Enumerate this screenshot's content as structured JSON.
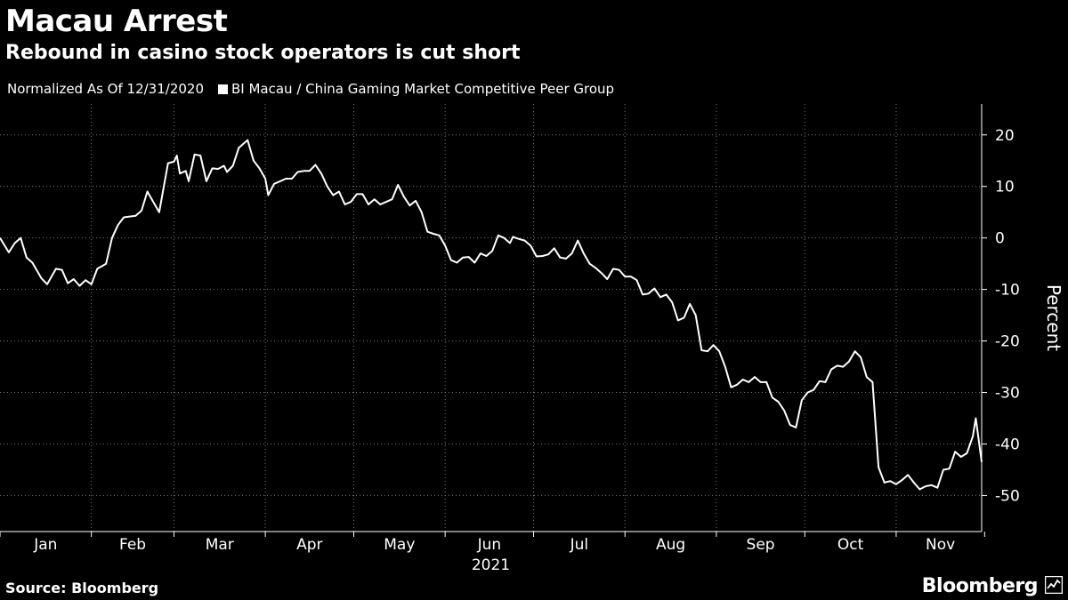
{
  "header": {
    "title": "Macau Arrest",
    "subtitle": "Rebound in casino stock operators is cut short",
    "note": "Normalized As Of 12/31/2020",
    "legend_label": "BI Macau / China Gaming Market Competitive Peer Group"
  },
  "footer": {
    "source": "Source: Bloomberg",
    "brand": "Bloomberg"
  },
  "colors": {
    "background": "#000000",
    "line": "#ffffff",
    "grid": "#777777"
  },
  "chart_data": {
    "type": "line",
    "ylabel": "Percent",
    "year_label": "2021",
    "ylim": [
      -57,
      26
    ],
    "yticks": [
      20,
      10,
      0,
      -10,
      -20,
      -30,
      -40,
      -50
    ],
    "x_start": "2021-01-01",
    "x_end": "2021-11-30",
    "grid": true,
    "months": [
      {
        "label": "Jan",
        "date": "2021-01-01"
      },
      {
        "label": "Feb",
        "date": "2021-02-01"
      },
      {
        "label": "Mar",
        "date": "2021-03-01"
      },
      {
        "label": "Apr",
        "date": "2021-04-01"
      },
      {
        "label": "May",
        "date": "2021-05-01"
      },
      {
        "label": "Jun",
        "date": "2021-06-01"
      },
      {
        "label": "Jul",
        "date": "2021-07-01"
      },
      {
        "label": "Aug",
        "date": "2021-08-01"
      },
      {
        "label": "Sep",
        "date": "2021-09-01"
      },
      {
        "label": "Oct",
        "date": "2021-10-01"
      },
      {
        "label": "Nov",
        "date": "2021-11-01"
      }
    ],
    "month_ends": [
      "2021-12-01"
    ],
    "series": [
      {
        "name": "BI Macau / China Gaming Market Competitive Peer Group",
        "points": [
          [
            "2021-01-01",
            0.0
          ],
          [
            "2021-01-04",
            -2.8
          ],
          [
            "2021-01-06",
            -1.0
          ],
          [
            "2021-01-08",
            0.0
          ],
          [
            "2021-01-10",
            -3.8
          ],
          [
            "2021-01-12",
            -4.8
          ],
          [
            "2021-01-15",
            -7.8
          ],
          [
            "2021-01-17",
            -9.0
          ],
          [
            "2021-01-20",
            -6.0
          ],
          [
            "2021-01-22",
            -6.2
          ],
          [
            "2021-01-24",
            -8.8
          ],
          [
            "2021-01-26",
            -8.0
          ],
          [
            "2021-01-28",
            -9.3
          ],
          [
            "2021-01-30",
            -8.2
          ],
          [
            "2021-02-01",
            -9.0
          ],
          [
            "2021-02-03",
            -6.0
          ],
          [
            "2021-02-06",
            -5.0
          ],
          [
            "2021-02-08",
            0.0
          ],
          [
            "2021-02-10",
            2.5
          ],
          [
            "2021-02-12",
            4.0
          ],
          [
            "2021-02-16",
            4.3
          ],
          [
            "2021-02-18",
            5.3
          ],
          [
            "2021-02-20",
            9.0
          ],
          [
            "2021-02-22",
            7.0
          ],
          [
            "2021-02-24",
            5.0
          ],
          [
            "2021-02-27",
            14.5
          ],
          [
            "2021-03-01",
            14.8
          ],
          [
            "2021-03-02",
            16.0
          ],
          [
            "2021-03-03",
            12.5
          ],
          [
            "2021-03-05",
            13.0
          ],
          [
            "2021-03-06",
            11.0
          ],
          [
            "2021-03-08",
            16.2
          ],
          [
            "2021-03-10",
            16.0
          ],
          [
            "2021-03-12",
            11.0
          ],
          [
            "2021-03-14",
            13.5
          ],
          [
            "2021-03-16",
            13.4
          ],
          [
            "2021-03-18",
            14.0
          ],
          [
            "2021-03-19",
            12.8
          ],
          [
            "2021-03-21",
            14.0
          ],
          [
            "2021-03-23",
            17.5
          ],
          [
            "2021-03-25",
            18.5
          ],
          [
            "2021-03-26",
            19.0
          ],
          [
            "2021-03-28",
            15.0
          ],
          [
            "2021-03-30",
            13.5
          ],
          [
            "2021-04-01",
            11.5
          ],
          [
            "2021-04-02",
            8.3
          ],
          [
            "2021-04-04",
            10.5
          ],
          [
            "2021-04-06",
            11.0
          ],
          [
            "2021-04-08",
            11.5
          ],
          [
            "2021-04-10",
            11.5
          ],
          [
            "2021-04-12",
            12.8
          ],
          [
            "2021-04-14",
            13.0
          ],
          [
            "2021-04-16",
            13.0
          ],
          [
            "2021-04-18",
            14.2
          ],
          [
            "2021-04-20",
            12.5
          ],
          [
            "2021-04-22",
            10.0
          ],
          [
            "2021-04-24",
            8.3
          ],
          [
            "2021-04-26",
            9.0
          ],
          [
            "2021-04-28",
            6.5
          ],
          [
            "2021-04-30",
            7.0
          ],
          [
            "2021-05-02",
            8.5
          ],
          [
            "2021-05-04",
            8.5
          ],
          [
            "2021-05-06",
            6.5
          ],
          [
            "2021-05-08",
            7.5
          ],
          [
            "2021-05-10",
            6.5
          ],
          [
            "2021-05-12",
            7.0
          ],
          [
            "2021-05-14",
            7.5
          ],
          [
            "2021-05-16",
            10.3
          ],
          [
            "2021-05-18",
            8.0
          ],
          [
            "2021-05-20",
            6.3
          ],
          [
            "2021-05-22",
            7.2
          ],
          [
            "2021-05-24",
            5.0
          ],
          [
            "2021-05-26",
            1.2
          ],
          [
            "2021-05-28",
            0.8
          ],
          [
            "2021-05-30",
            0.5
          ],
          [
            "2021-06-01",
            -1.5
          ],
          [
            "2021-06-03",
            -4.3
          ],
          [
            "2021-06-05",
            -4.8
          ],
          [
            "2021-06-07",
            -3.8
          ],
          [
            "2021-06-09",
            -3.7
          ],
          [
            "2021-06-11",
            -4.8
          ],
          [
            "2021-06-13",
            -3.0
          ],
          [
            "2021-06-15",
            -3.5
          ],
          [
            "2021-06-17",
            -2.5
          ],
          [
            "2021-06-19",
            0.5
          ],
          [
            "2021-06-21",
            0.0
          ],
          [
            "2021-06-23",
            -1.0
          ],
          [
            "2021-06-24",
            0.2
          ],
          [
            "2021-06-26",
            -0.2
          ],
          [
            "2021-06-28",
            -0.5
          ],
          [
            "2021-06-30",
            -1.5
          ],
          [
            "2021-07-02",
            -3.6
          ],
          [
            "2021-07-04",
            -3.5
          ],
          [
            "2021-07-06",
            -3.2
          ],
          [
            "2021-07-08",
            -2.0
          ],
          [
            "2021-07-10",
            -3.8
          ],
          [
            "2021-07-12",
            -4.0
          ],
          [
            "2021-07-14",
            -3.0
          ],
          [
            "2021-07-16",
            -0.5
          ],
          [
            "2021-07-18",
            -3.0
          ],
          [
            "2021-07-20",
            -5.0
          ],
          [
            "2021-07-22",
            -5.8
          ],
          [
            "2021-07-24",
            -6.8
          ],
          [
            "2021-07-26",
            -8.0
          ],
          [
            "2021-07-28",
            -6.0
          ],
          [
            "2021-07-30",
            -6.2
          ],
          [
            "2021-08-01",
            -7.5
          ],
          [
            "2021-08-03",
            -7.5
          ],
          [
            "2021-08-05",
            -8.2
          ],
          [
            "2021-08-07",
            -11.0
          ],
          [
            "2021-08-09",
            -10.8
          ],
          [
            "2021-08-11",
            -9.8
          ],
          [
            "2021-08-13",
            -11.5
          ],
          [
            "2021-08-15",
            -11.0
          ],
          [
            "2021-08-17",
            -12.5
          ],
          [
            "2021-08-19",
            -16.0
          ],
          [
            "2021-08-21",
            -15.5
          ],
          [
            "2021-08-23",
            -12.8
          ],
          [
            "2021-08-25",
            -15.0
          ],
          [
            "2021-08-27",
            -21.8
          ],
          [
            "2021-08-29",
            -22.0
          ],
          [
            "2021-08-31",
            -20.8
          ],
          [
            "2021-09-02",
            -22.0
          ],
          [
            "2021-09-04",
            -25.0
          ],
          [
            "2021-09-06",
            -29.0
          ],
          [
            "2021-09-08",
            -28.5
          ],
          [
            "2021-09-10",
            -27.5
          ],
          [
            "2021-09-12",
            -28.0
          ],
          [
            "2021-09-14",
            -27.0
          ],
          [
            "2021-09-16",
            -28.0
          ],
          [
            "2021-09-18",
            -28.0
          ],
          [
            "2021-09-20",
            -31.0
          ],
          [
            "2021-09-22",
            -31.8
          ],
          [
            "2021-09-24",
            -33.5
          ],
          [
            "2021-09-26",
            -36.3
          ],
          [
            "2021-09-28",
            -36.8
          ],
          [
            "2021-09-30",
            -31.5
          ],
          [
            "2021-10-02",
            -30.0
          ],
          [
            "2021-10-04",
            -29.5
          ],
          [
            "2021-10-06",
            -27.8
          ],
          [
            "2021-10-08",
            -28.0
          ],
          [
            "2021-10-10",
            -25.5
          ],
          [
            "2021-10-12",
            -24.8
          ],
          [
            "2021-10-14",
            -25.0
          ],
          [
            "2021-10-16",
            -24.0
          ],
          [
            "2021-10-18",
            -22.0
          ],
          [
            "2021-10-20",
            -23.2
          ],
          [
            "2021-10-22",
            -27.0
          ],
          [
            "2021-10-24",
            -28.0
          ],
          [
            "2021-10-26",
            -44.5
          ],
          [
            "2021-10-28",
            -47.5
          ],
          [
            "2021-10-30",
            -47.2
          ],
          [
            "2021-11-01",
            -47.8
          ],
          [
            "2021-11-03",
            -47.0
          ],
          [
            "2021-11-05",
            -46.0
          ],
          [
            "2021-11-07",
            -47.5
          ],
          [
            "2021-11-09",
            -48.8
          ],
          [
            "2021-11-11",
            -48.2
          ],
          [
            "2021-11-13",
            -48.0
          ],
          [
            "2021-11-15",
            -48.5
          ],
          [
            "2021-11-17",
            -45.0
          ],
          [
            "2021-11-19",
            -44.8
          ],
          [
            "2021-11-21",
            -41.5
          ],
          [
            "2021-11-23",
            -42.5
          ],
          [
            "2021-11-25",
            -41.8
          ],
          [
            "2021-11-27",
            -38.5
          ],
          [
            "2021-11-28",
            -35.0
          ],
          [
            "2021-11-30",
            -43.5
          ]
        ]
      }
    ]
  }
}
